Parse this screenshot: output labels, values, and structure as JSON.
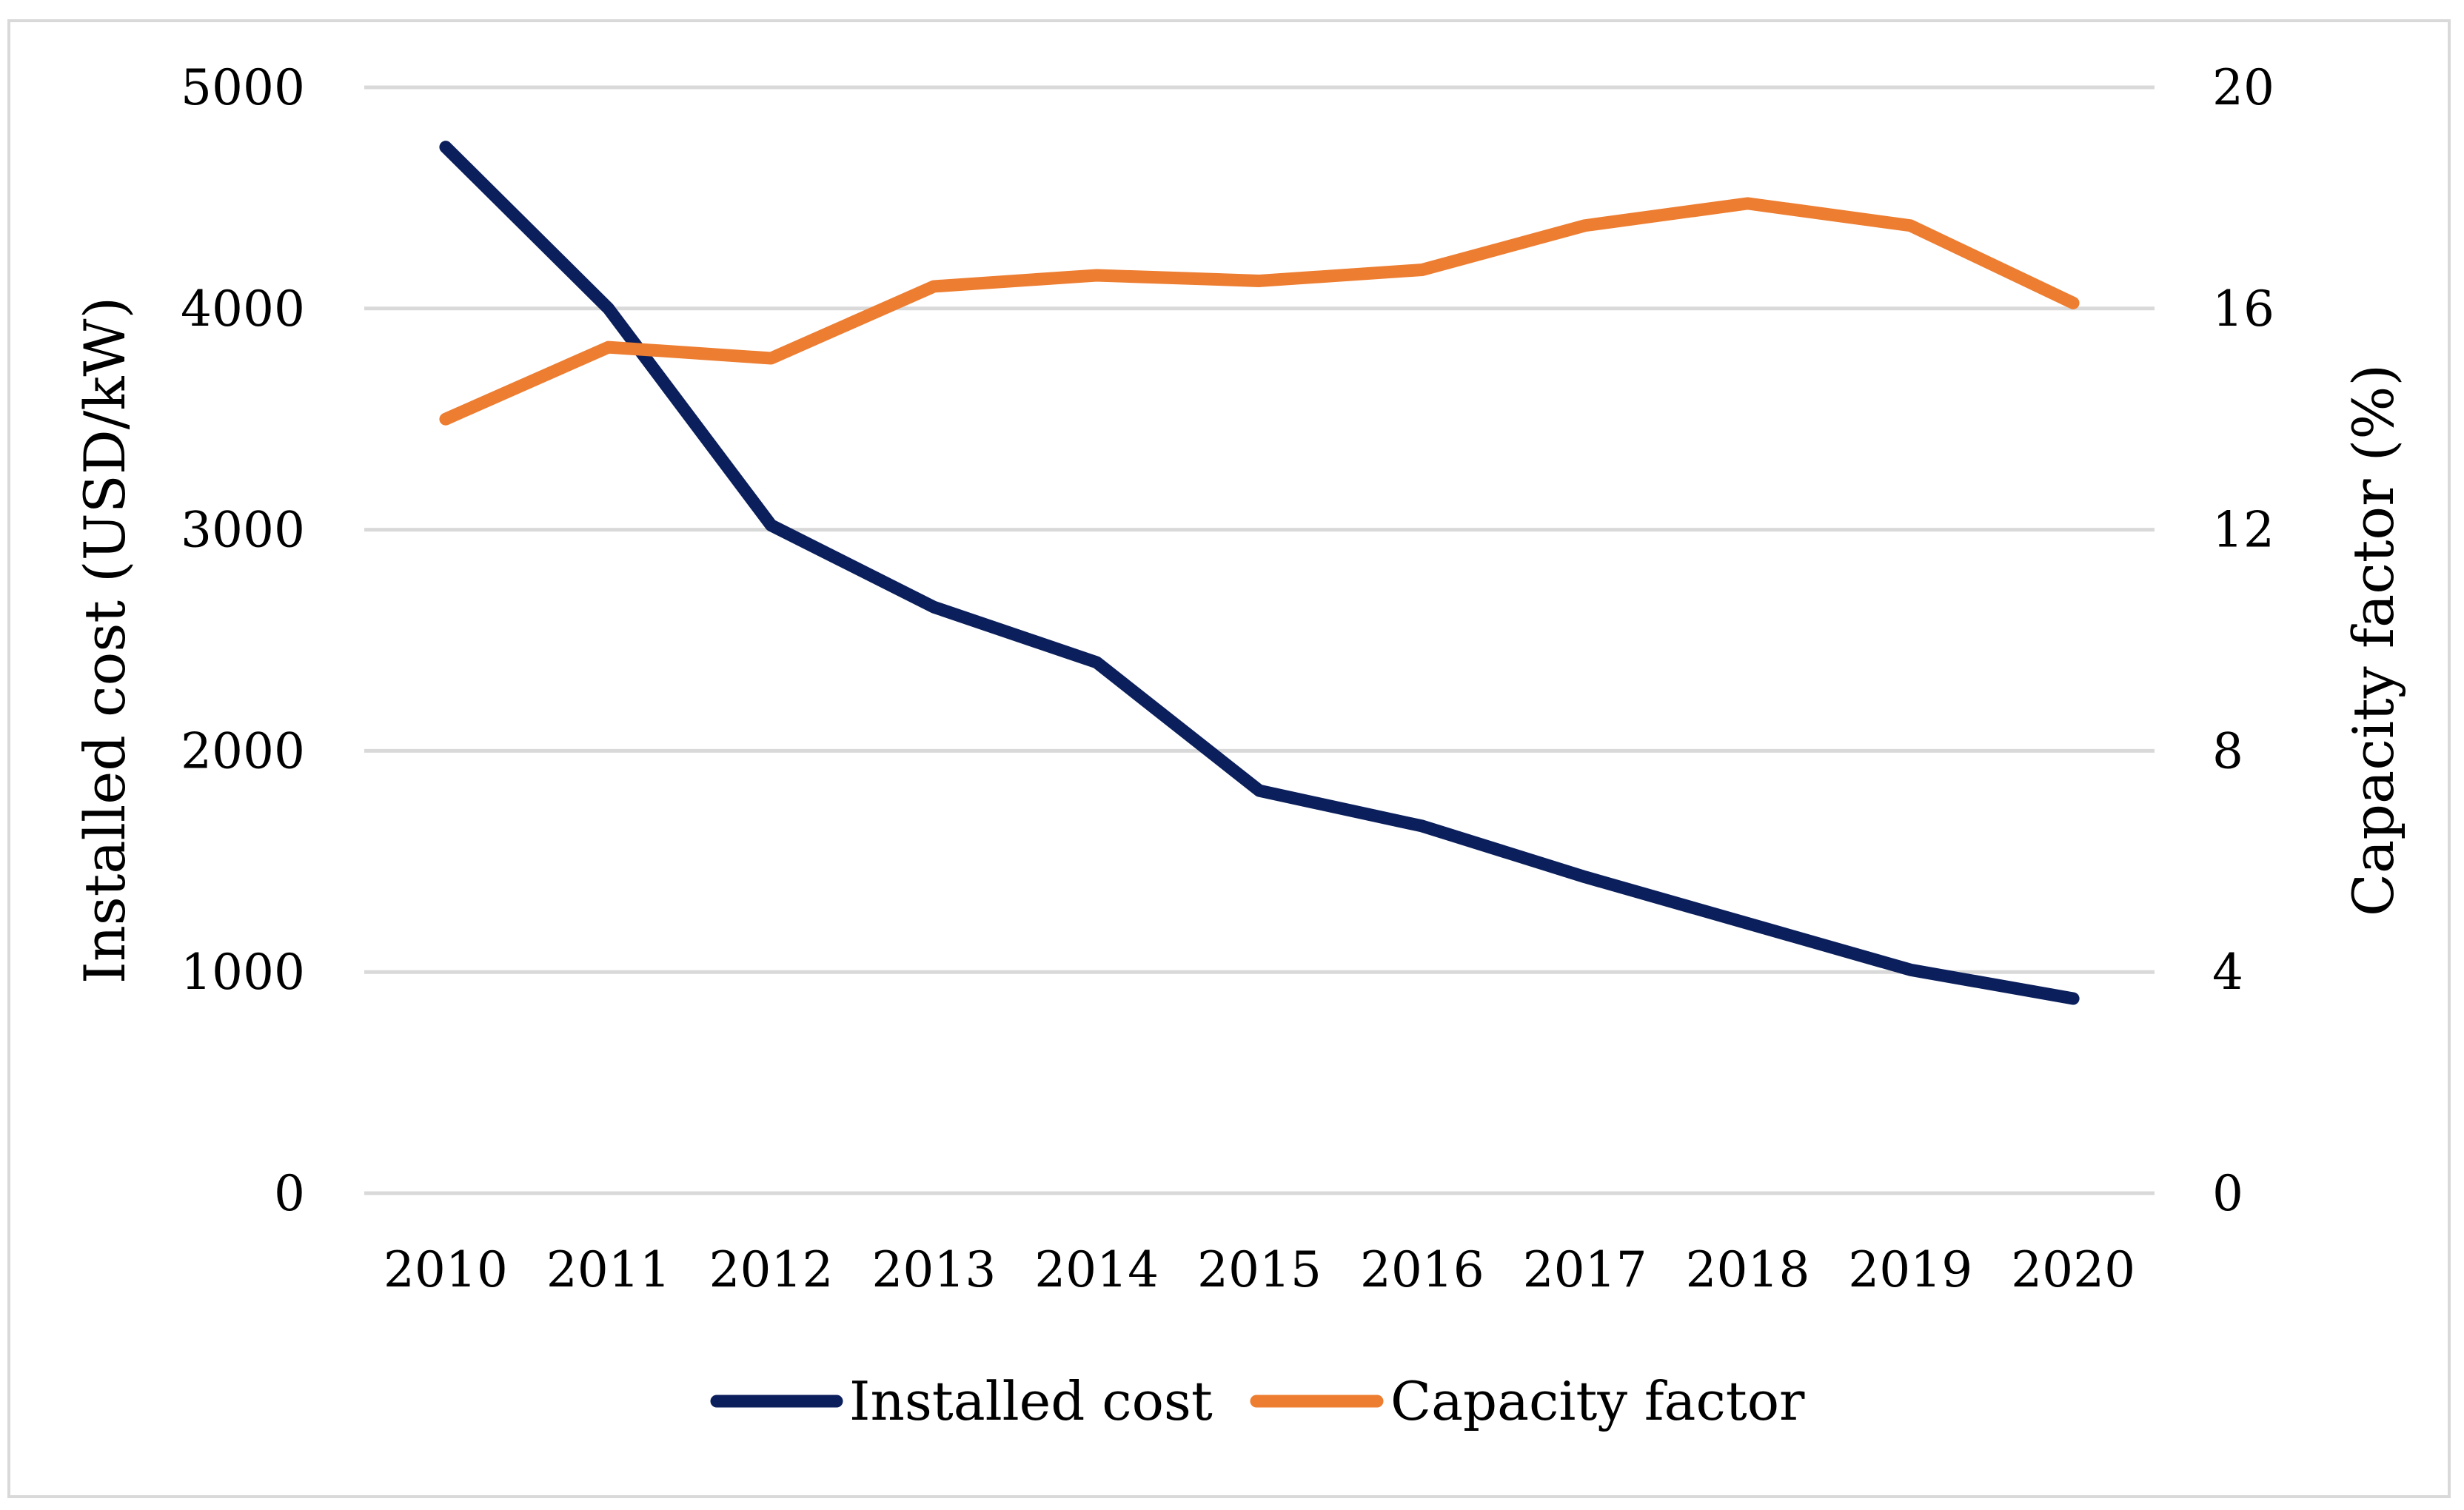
{
  "chart_data": {
    "type": "line",
    "title": "",
    "categories": [
      "2010",
      "2011",
      "2012",
      "2013",
      "2014",
      "2015",
      "2016",
      "2017",
      "2018",
      "2019",
      "2020"
    ],
    "series": [
      {
        "name": "Installed cost",
        "axis": "left",
        "color": "#0b1f5c",
        "values": [
          4730,
          4000,
          3020,
          2650,
          2400,
          1820,
          1660,
          1430,
          1220,
          1010,
          880
        ]
      },
      {
        "name": "Capacity factor",
        "axis": "right",
        "color": "#ed7d31",
        "values": [
          14.0,
          15.3,
          15.1,
          16.4,
          16.6,
          16.5,
          16.7,
          17.5,
          17.9,
          17.5,
          16.1
        ]
      }
    ],
    "y_left": {
      "label": "Installed cost (USD/kW)",
      "range": [
        0,
        5000
      ],
      "ticks": [
        "0",
        "1000",
        "2000",
        "3000",
        "4000",
        "5000"
      ]
    },
    "y_right": {
      "label": "Capacity factor (%)",
      "range": [
        0,
        20
      ],
      "ticks": [
        "0",
        "4",
        "8",
        "12",
        "16",
        "20"
      ]
    },
    "grid": true,
    "legend": "bottom"
  }
}
